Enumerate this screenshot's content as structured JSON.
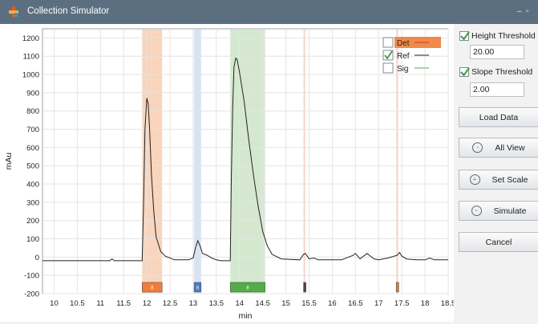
{
  "window": {
    "title": "Collection Simulator",
    "minimize_glyph": "–",
    "maximize_glyph": "▫"
  },
  "icons": {
    "app": "app-logo-icon"
  },
  "chart_data": {
    "type": "line",
    "title": "",
    "xlabel": "min",
    "ylabel": "mAu",
    "xlim": [
      9.75,
      18.5
    ],
    "ylim": [
      -200,
      1250
    ],
    "x_ticks": [
      "10",
      "10.5",
      "11",
      "11.5",
      "12",
      "12.5",
      "13",
      "13.5",
      "14",
      "14.5",
      "15",
      "15.5",
      "16",
      "16.5",
      "17",
      "17.5",
      "18",
      "18.5"
    ],
    "y_ticks": [
      "1200",
      "1100",
      "1000",
      "900",
      "800",
      "700",
      "600",
      "500",
      "400",
      "300",
      "200",
      "100",
      "0",
      "-100",
      "-200"
    ],
    "grid": true,
    "series": [
      {
        "name": "Ref",
        "color": "#222222",
        "x": [
          9.75,
          11.2,
          11.25,
          11.3,
          11.9,
          11.93,
          11.96,
          12.0,
          12.03,
          12.06,
          12.1,
          12.15,
          12.2,
          12.3,
          12.4,
          12.6,
          12.9,
          13.0,
          13.05,
          13.1,
          13.15,
          13.2,
          13.3,
          13.4,
          13.5,
          13.6,
          13.8,
          13.82,
          13.85,
          13.88,
          13.92,
          13.95,
          14.0,
          14.1,
          14.2,
          14.3,
          14.4,
          14.5,
          14.6,
          14.7,
          14.9,
          15.3,
          15.38,
          15.42,
          15.5,
          15.6,
          15.7,
          16.0,
          16.2,
          16.45,
          16.5,
          16.6,
          16.75,
          16.8,
          16.9,
          17.0,
          17.2,
          17.4,
          17.45,
          17.5,
          17.6,
          17.8,
          18.0,
          18.1,
          18.2,
          18.5
        ],
        "y": [
          -20,
          -20,
          -10,
          -20,
          -20,
          300,
          700,
          870,
          840,
          700,
          450,
          250,
          110,
          30,
          5,
          -15,
          -15,
          -5,
          50,
          90,
          60,
          20,
          10,
          -5,
          -15,
          -20,
          -20,
          400,
          800,
          1040,
          1090,
          1080,
          1010,
          850,
          640,
          450,
          280,
          140,
          60,
          15,
          -10,
          -15,
          15,
          20,
          -10,
          -5,
          -15,
          -15,
          -15,
          10,
          20,
          -10,
          20,
          10,
          -10,
          -15,
          -5,
          10,
          25,
          5,
          -10,
          -15,
          -15,
          -5,
          -15,
          -15
        ]
      }
    ],
    "legend": [
      {
        "name": "Det",
        "checked": false,
        "color": "#f08a4b",
        "selected": true
      },
      {
        "name": "Ref",
        "checked": true,
        "color": "#222222",
        "selected": false
      },
      {
        "name": "Sig",
        "checked": false,
        "color": "#5aa05a",
        "selected": false
      }
    ],
    "legend_position": "top-right",
    "fractions": [
      {
        "start": 11.9,
        "end": 12.33,
        "color": "#f6c7a6",
        "marker": "#f07d3e",
        "label": "8"
      },
      {
        "start": 13.02,
        "end": 13.17,
        "color": "#cbd8ee",
        "marker": "#4a78c5",
        "label": "8"
      },
      {
        "start": 13.8,
        "end": 14.55,
        "color": "#c5e0bf",
        "marker": "#52ad46",
        "label": "8"
      },
      {
        "start": 15.38,
        "end": 15.41,
        "color": "#f4c6bd",
        "marker": "#444444",
        "label": ""
      },
      {
        "start": 17.38,
        "end": 17.42,
        "color": "#f4c6bd",
        "marker": "#e07a30",
        "label": ""
      }
    ]
  },
  "panel": {
    "height_threshold": {
      "label": "Height Threshold",
      "checked": true,
      "value": "20.00"
    },
    "slope_threshold": {
      "label": "Slope Threshold",
      "checked": true,
      "value": "2.00"
    },
    "buttons": {
      "load_data": "Load Data",
      "all_view": "All View",
      "set_scale": "Set Scale",
      "simulate": "Simulate",
      "cancel": "Cancel"
    },
    "button_icons": {
      "all_view": "all-view-icon",
      "set_scale": "set-scale-icon",
      "simulate": "simulate-icon"
    }
  }
}
